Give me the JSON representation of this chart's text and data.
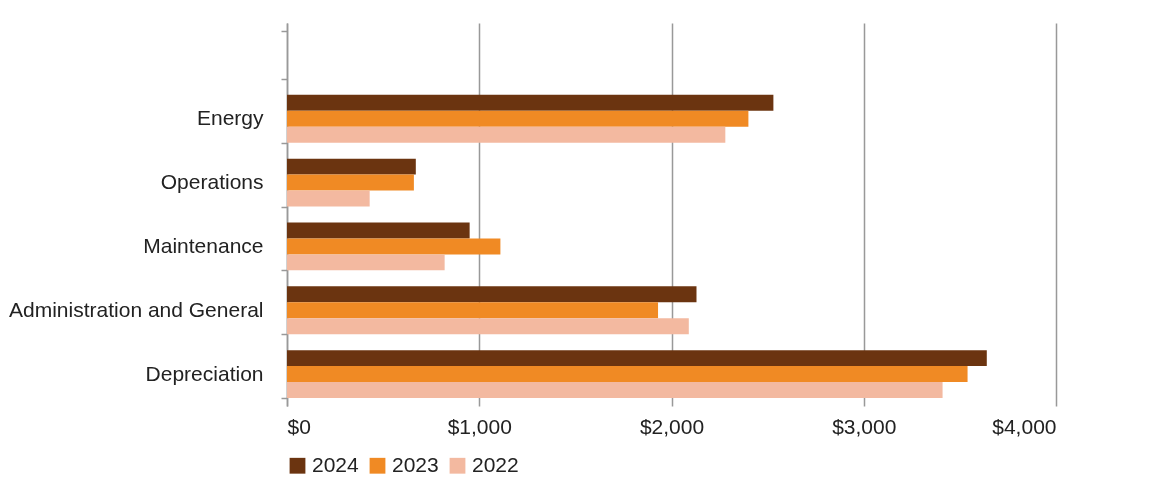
{
  "chart_data": {
    "type": "bar",
    "orientation": "horizontal",
    "categories": [
      null,
      "Energy",
      "Operations",
      "Maintenance",
      "Administration and General",
      "Depreciation"
    ],
    "series": [
      {
        "name": "2024",
        "color": "#6b3410",
        "values": [
          null,
          2530,
          670,
          950,
          2130,
          3640
        ]
      },
      {
        "name": "2023",
        "color": "#f08a24",
        "values": [
          null,
          2400,
          660,
          1110,
          1930,
          3540
        ]
      },
      {
        "name": "2022",
        "color": "#f3b9a0",
        "values": [
          null,
          2280,
          430,
          820,
          2090,
          3410
        ]
      }
    ],
    "xlim": [
      0,
      4000
    ],
    "xticks": [
      {
        "value": 0,
        "label": "$0"
      },
      {
        "value": 1000,
        "label": "$1,000"
      },
      {
        "value": 2000,
        "label": "$2,000"
      },
      {
        "value": 3000,
        "label": "$3,000"
      },
      {
        "value": 4000,
        "label": "$4,000"
      }
    ],
    "grid": "x",
    "legend": "bottom"
  }
}
